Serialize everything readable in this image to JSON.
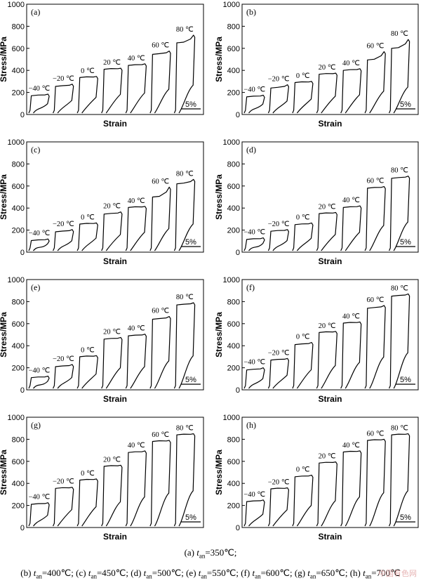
{
  "chart_data": [
    {
      "type": "line",
      "panel": "(a)",
      "xlabel": "Strain",
      "ylabel": "Stress/MPa",
      "ylim": [
        0,
        1000
      ],
      "yticks": [
        0,
        200,
        400,
        600,
        800,
        1000
      ],
      "scale_bar": "5%",
      "series": [
        {
          "name": "−40 ℃",
          "plateau": 170,
          "peak": 185
        },
        {
          "name": "−20 ℃",
          "plateau": 255,
          "peak": 275
        },
        {
          "name": "0 ℃",
          "plateau": 335,
          "peak": 345
        },
        {
          "name": "20 ℃",
          "plateau": 410,
          "peak": 420
        },
        {
          "name": "40 ℃",
          "plateau": 445,
          "peak": 460
        },
        {
          "name": "60 ℃",
          "plateau": 545,
          "peak": 575
        },
        {
          "name": "80 ℃",
          "plateau": 650,
          "peak": 720
        }
      ]
    },
    {
      "type": "line",
      "panel": "(b)",
      "xlabel": "Strain",
      "ylabel": "Stress/MPa",
      "ylim": [
        0,
        1000
      ],
      "yticks": [
        0,
        200,
        400,
        600,
        800,
        1000
      ],
      "scale_bar": "5%",
      "series": [
        {
          "name": "−40 ℃",
          "plateau": 160,
          "peak": 175
        },
        {
          "name": "−20 ℃",
          "plateau": 240,
          "peak": 270
        },
        {
          "name": "0 ℃",
          "plateau": 290,
          "peak": 300
        },
        {
          "name": "20 ℃",
          "plateau": 365,
          "peak": 375
        },
        {
          "name": "40 ℃",
          "plateau": 400,
          "peak": 415
        },
        {
          "name": "60 ℃",
          "plateau": 495,
          "peak": 570
        },
        {
          "name": "80 ℃",
          "plateau": 600,
          "peak": 680
        }
      ]
    },
    {
      "type": "line",
      "panel": "(c)",
      "xlabel": "Strain",
      "ylabel": "Stress/MPa",
      "ylim": [
        0,
        1000
      ],
      "yticks": [
        0,
        200,
        400,
        600,
        800,
        1000
      ],
      "scale_bar": "5%",
      "series": [
        {
          "name": "−40 ℃",
          "plateau": 105,
          "peak": 120
        },
        {
          "name": "−20 ℃",
          "plateau": 185,
          "peak": 205
        },
        {
          "name": "0 ℃",
          "plateau": 255,
          "peak": 265
        },
        {
          "name": "20 ℃",
          "plateau": 345,
          "peak": 365
        },
        {
          "name": "40 ℃",
          "plateau": 405,
          "peak": 415
        },
        {
          "name": "60 ℃",
          "plateau": 500,
          "peak": 590
        },
        {
          "name": "80 ℃",
          "plateau": 620,
          "peak": 660
        }
      ]
    },
    {
      "type": "line",
      "panel": "(d)",
      "xlabel": "Strain",
      "ylabel": "Stress/MPa",
      "ylim": [
        0,
        1000
      ],
      "yticks": [
        0,
        200,
        400,
        600,
        800,
        1000
      ],
      "scale_bar": "5%",
      "series": [
        {
          "name": "−40 ℃",
          "plateau": 115,
          "peak": 130
        },
        {
          "name": "−20 ℃",
          "plateau": 190,
          "peak": 205
        },
        {
          "name": "0 ℃",
          "plateau": 250,
          "peak": 265
        },
        {
          "name": "20 ℃",
          "plateau": 350,
          "peak": 360
        },
        {
          "name": "40 ℃",
          "plateau": 405,
          "peak": 420
        },
        {
          "name": "60 ℃",
          "plateau": 580,
          "peak": 595
        },
        {
          "name": "80 ℃",
          "plateau": 670,
          "peak": 690
        }
      ]
    },
    {
      "type": "line",
      "panel": "(e)",
      "xlabel": "Strain",
      "ylabel": "Stress/MPa",
      "ylim": [
        0,
        1000
      ],
      "yticks": [
        0,
        200,
        400,
        600,
        800,
        1000
      ],
      "scale_bar": "5%",
      "series": [
        {
          "name": "−40 ℃",
          "plateau": 110,
          "peak": 125
        },
        {
          "name": "−20 ℃",
          "plateau": 210,
          "peak": 230
        },
        {
          "name": "0 ℃",
          "plateau": 300,
          "peak": 310
        },
        {
          "name": "20 ℃",
          "plateau": 460,
          "peak": 475
        },
        {
          "name": "40 ℃",
          "plateau": 490,
          "peak": 505
        },
        {
          "name": "60 ℃",
          "plateau": 640,
          "peak": 665
        },
        {
          "name": "80 ℃",
          "plateau": 770,
          "peak": 790
        }
      ]
    },
    {
      "type": "line",
      "panel": "(f)",
      "xlabel": "Strain",
      "ylabel": "Stress/MPa",
      "ylim": [
        0,
        1000
      ],
      "yticks": [
        0,
        200,
        400,
        600,
        800,
        1000
      ],
      "scale_bar": "5%",
      "series": [
        {
          "name": "−40 ℃",
          "plateau": 180,
          "peak": 200
        },
        {
          "name": "−20 ℃",
          "plateau": 270,
          "peak": 285
        },
        {
          "name": "0 ℃",
          "plateau": 410,
          "peak": 430
        },
        {
          "name": "20 ℃",
          "plateau": 520,
          "peak": 530
        },
        {
          "name": "40 ℃",
          "plateau": 605,
          "peak": 615
        },
        {
          "name": "60 ℃",
          "plateau": 740,
          "peak": 765
        },
        {
          "name": "80 ℃",
          "plateau": 850,
          "peak": 870
        }
      ]
    },
    {
      "type": "line",
      "panel": "(g)",
      "xlabel": "Strain",
      "ylabel": "Stress/MPa",
      "ylim": [
        0,
        1000
      ],
      "yticks": [
        0,
        200,
        400,
        600,
        800,
        1000
      ],
      "scale_bar": "5%",
      "series": [
        {
          "name": "−40 ℃",
          "plateau": 210,
          "peak": 225
        },
        {
          "name": "−20 ℃",
          "plateau": 355,
          "peak": 365
        },
        {
          "name": "0 ℃",
          "plateau": 430,
          "peak": 440
        },
        {
          "name": "20 ℃",
          "plateau": 555,
          "peak": 565
        },
        {
          "name": "40 ℃",
          "plateau": 680,
          "peak": 695
        },
        {
          "name": "60 ℃",
          "plateau": 780,
          "peak": 790
        },
        {
          "name": "80 ℃",
          "plateau": 840,
          "peak": 850
        }
      ]
    },
    {
      "type": "line",
      "panel": "(h)",
      "xlabel": "Strain",
      "ylabel": "Stress/MPa",
      "ylim": [
        0,
        1000
      ],
      "yticks": [
        0,
        200,
        400,
        600,
        800,
        1000
      ],
      "scale_bar": "5%",
      "series": [
        {
          "name": "−40 ℃",
          "plateau": 235,
          "peak": 250
        },
        {
          "name": "−20 ℃",
          "plateau": 350,
          "peak": 360
        },
        {
          "name": "0 ℃",
          "plateau": 460,
          "peak": 475
        },
        {
          "name": "20 ℃",
          "plateau": 585,
          "peak": 595
        },
        {
          "name": "40 ℃",
          "plateau": 685,
          "peak": 695
        },
        {
          "name": "60 ℃",
          "plateau": 790,
          "peak": 800
        },
        {
          "name": "80 ℃",
          "plateau": 840,
          "peak": 850
        }
      ]
    }
  ],
  "caption": {
    "line1": {
      "prefix": "(a) ",
      "t": "t",
      "sub": "an",
      "value": "=350℃;"
    },
    "line2": [
      {
        "prefix": "(b) ",
        "t": "t",
        "sub": "an",
        "value": "=400℃; "
      },
      {
        "prefix": "(c) ",
        "t": "t",
        "sub": "an",
        "value": "=450℃; "
      },
      {
        "prefix": "(d) ",
        "t": "t",
        "sub": "an",
        "value": "=500℃; "
      },
      {
        "prefix": "(e) ",
        "t": "t",
        "sub": "an",
        "value": "=550℃; "
      },
      {
        "prefix": "(f) ",
        "t": "t",
        "sub": "an",
        "value": "=600℃; "
      },
      {
        "prefix": "(g) ",
        "t": "t",
        "sub": "an",
        "value": "=650℃; "
      },
      {
        "prefix": "(h) ",
        "t": "t",
        "sub": "an",
        "value": "=700℃"
      }
    ]
  },
  "watermark": "中国有色网",
  "colors": {
    "line": "#000000",
    "background": "#ffffff"
  }
}
